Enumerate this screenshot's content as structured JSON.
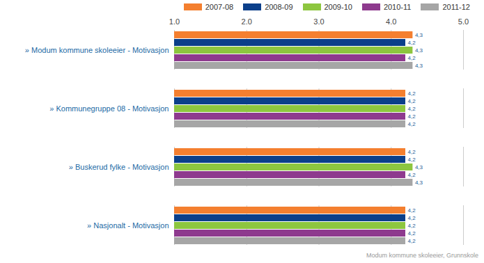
{
  "chart_data": {
    "type": "bar",
    "orientation": "horizontal",
    "caption": "Modum kommune skoleeier, Grunnskole",
    "categories": [
      "» Modum kommune skoleeier - Motivasjon",
      "» Kommunegruppe 08 - Motivasjon",
      "» Buskerud fylke - Motivasjon",
      "» Nasjonalt - Motivasjon"
    ],
    "series": [
      {
        "name": "2007-08",
        "color": "#f47f2f",
        "values": [
          4.3,
          4.2,
          4.2,
          4.2
        ],
        "value_labels": [
          "4,3",
          "4,2",
          "4,2",
          "4,2"
        ]
      },
      {
        "name": "2008-09",
        "color": "#0b3f8a",
        "values": [
          4.2,
          4.2,
          4.2,
          4.2
        ],
        "value_labels": [
          "4,2",
          "4,2",
          "4,2",
          "4,2"
        ]
      },
      {
        "name": "2009-10",
        "color": "#8dc63f",
        "values": [
          4.3,
          4.2,
          4.3,
          4.2
        ],
        "value_labels": [
          "4,3",
          "4,2",
          "4,3",
          "4,2"
        ]
      },
      {
        "name": "2010-11",
        "color": "#8e3a8e",
        "values": [
          4.2,
          4.2,
          4.2,
          4.2
        ],
        "value_labels": [
          "4,2",
          "4,2",
          "4,2",
          "4,2"
        ]
      },
      {
        "name": "2011-12",
        "color": "#a6a6a6",
        "values": [
          4.3,
          4.2,
          4.3,
          4.2
        ],
        "value_labels": [
          "4,3",
          "4,2",
          "4,3",
          "4,2"
        ]
      }
    ],
    "xlim": [
      1,
      5
    ],
    "xticks": [
      1,
      2,
      3,
      4,
      5
    ],
    "grid": true,
    "legend": "top",
    "data_labels": true
  }
}
